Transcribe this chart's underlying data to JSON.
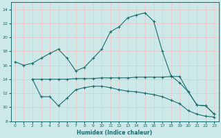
{
  "xlabel": "Humidex (Indice chaleur)",
  "bg_color": "#cce8e8",
  "grid_color": "#e8c8c8",
  "line_color": "#1a6b6b",
  "xlim": [
    -0.5,
    23.5
  ],
  "ylim": [
    8,
    25
  ],
  "yticks": [
    8,
    10,
    12,
    14,
    16,
    18,
    20,
    22,
    24
  ],
  "xticks": [
    0,
    1,
    2,
    3,
    4,
    5,
    6,
    7,
    8,
    9,
    10,
    11,
    12,
    13,
    14,
    15,
    16,
    17,
    18,
    19,
    20,
    21,
    22,
    23
  ],
  "line1_x": [
    0,
    1,
    2,
    3,
    4,
    5,
    6,
    7,
    8,
    9,
    10,
    11,
    12,
    13,
    14,
    15,
    16,
    17,
    18,
    19,
    20,
    21,
    22,
    23
  ],
  "line1_y": [
    16.5,
    16.0,
    16.3,
    17.0,
    17.7,
    18.3,
    17.0,
    15.2,
    15.7,
    17.0,
    18.3,
    20.8,
    21.5,
    22.8,
    23.2,
    23.5,
    22.3,
    18.0,
    14.5,
    13.5,
    12.2,
    10.3,
    10.2,
    9.0
  ],
  "line2_x": [
    2,
    3,
    4,
    5,
    6,
    7,
    8,
    9,
    10,
    11,
    12,
    13,
    14,
    15,
    16,
    17,
    18,
    19,
    20,
    21,
    22,
    23
  ],
  "line2_y": [
    14.0,
    14.0,
    14.0,
    14.0,
    14.0,
    14.1,
    14.1,
    14.1,
    14.2,
    14.2,
    14.2,
    14.2,
    14.3,
    14.3,
    14.3,
    14.3,
    14.4,
    14.4,
    12.2,
    10.3,
    10.2,
    9.0
  ],
  "line3_x": [
    2,
    3,
    4,
    5,
    6,
    7,
    8,
    9,
    10,
    11,
    12,
    13,
    14,
    15,
    16,
    17,
    18,
    19,
    20,
    21,
    22,
    23
  ],
  "line3_y": [
    14.0,
    11.5,
    11.5,
    10.2,
    11.3,
    12.5,
    12.8,
    13.0,
    13.0,
    12.8,
    12.5,
    12.3,
    12.2,
    12.0,
    11.8,
    11.5,
    11.0,
    10.5,
    9.5,
    9.0,
    8.7,
    8.6
  ],
  "figsize": [
    3.2,
    2.0
  ],
  "dpi": 100
}
